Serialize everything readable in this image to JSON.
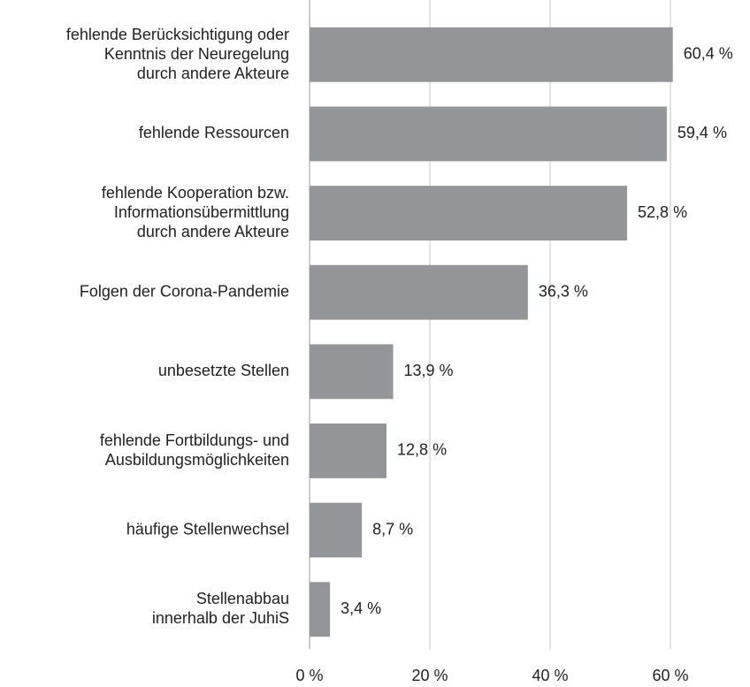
{
  "chart_data": {
    "type": "bar",
    "orientation": "horizontal",
    "categories": [
      "fehlende Berücksichtigung oder\nKenntnis der Neuregelung\ndurch andere Akteure",
      "fehlende Ressourcen",
      "fehlende Kooperation bzw.\nInformationsübermittlung\ndurch andere Akteure",
      "Folgen der Corona-Pandemie",
      "unbesetzte Stellen",
      "fehlende Fortbildungs- und\nAusbildungsmöglichkeiten",
      "häufige Stellenwechsel",
      "Stellenabbau\ninnerhalb der JuhiS"
    ],
    "values": [
      60.4,
      59.4,
      52.8,
      36.3,
      13.9,
      12.8,
      8.7,
      3.4
    ],
    "value_labels": [
      "60,4 %",
      "59,4 %",
      "52,8 %",
      "36,3 %",
      "13,9 %",
      "12,8 %",
      "8,7 %",
      "3,4 %"
    ],
    "color": "#939598",
    "xlim": [
      0,
      70
    ],
    "xticks": [
      {
        "value": 0,
        "label": "0 %"
      },
      {
        "value": 20,
        "label": "20 %"
      },
      {
        "value": 40,
        "label": "40 %"
      },
      {
        "value": 60,
        "label": "60 %"
      }
    ],
    "grid": true
  }
}
